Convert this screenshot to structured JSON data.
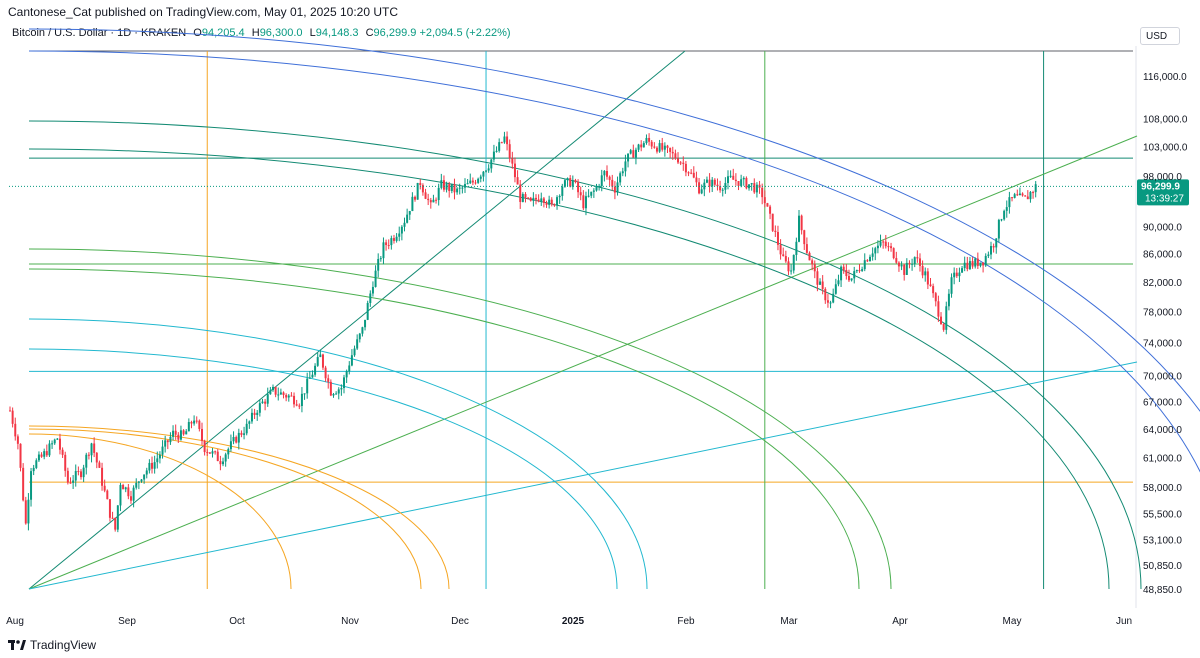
{
  "header": {
    "published": "Cantonese_Cat published on TradingView.com, May 01, 2025 10:20 UTC",
    "symbol": "Bitcoin / U.S. Dollar · 1D · KRAKEN",
    "open_label": "O",
    "open": "94,205.4",
    "high_label": "H",
    "high": "96,300.0",
    "low_label": "L",
    "low": "94,148.3",
    "close_label": "C",
    "close": "96,299.9",
    "change": "+2,094.5 (+2.22%)",
    "currency": "USD"
  },
  "footer": {
    "brand": "TradingView"
  },
  "colors": {
    "up": "#089981",
    "down": "#f23645",
    "orange": "#f5a623",
    "cyan": "#22b8cf",
    "green": "#4caf50",
    "teal": "#138a73",
    "blue": "#3f6fd8",
    "price_tag": "#089981"
  },
  "chart_data": {
    "type": "candlestick",
    "title": "Bitcoin / U.S. Dollar · 1D · KRAKEN",
    "y_scale": "log",
    "ylim": [
      48850,
      121000
    ],
    "y_ticks": [
      "116,000.0",
      "108,000.0",
      "103,000.0",
      "98,000.0",
      "90,000.0",
      "86,000.0",
      "82,000.0",
      "78,000.0",
      "74,000.0",
      "70,000.0",
      "67,000.0",
      "64,000.0",
      "61,000.0",
      "58,000.0",
      "55,500.0",
      "53,100.0",
      "50,850.0",
      "48,850.0"
    ],
    "x_ticks": [
      "Aug",
      "Sep",
      "Oct",
      "Nov",
      "Dec",
      "2025",
      "Feb",
      "Mar",
      "Apr",
      "May",
      "Jun"
    ],
    "last_price": "96,299.9",
    "countdown": "13:39:27",
    "price_anchors": [
      [
        0,
        66000
      ],
      [
        3,
        62500
      ],
      [
        5,
        57000
      ],
      [
        6,
        54500
      ],
      [
        8,
        60000
      ],
      [
        12,
        61000
      ],
      [
        18,
        63000
      ],
      [
        22,
        58500
      ],
      [
        27,
        59500
      ],
      [
        31,
        62500
      ],
      [
        36,
        57500
      ],
      [
        38,
        55500
      ],
      [
        40,
        54000
      ],
      [
        42,
        58500
      ],
      [
        46,
        57200
      ],
      [
        50,
        59200
      ],
      [
        55,
        60500
      ],
      [
        62,
        63500
      ],
      [
        66,
        63200
      ],
      [
        70,
        65200
      ],
      [
        74,
        62000
      ],
      [
        80,
        60700
      ],
      [
        86,
        63000
      ],
      [
        90,
        64200
      ],
      [
        94,
        66200
      ],
      [
        100,
        68200
      ],
      [
        106,
        67600
      ],
      [
        110,
        67000
      ],
      [
        114,
        69700
      ],
      [
        118,
        72300
      ],
      [
        122,
        68200
      ],
      [
        126,
        68600
      ],
      [
        130,
        72500
      ],
      [
        134,
        75600
      ],
      [
        138,
        82000
      ],
      [
        142,
        87000
      ],
      [
        146,
        88500
      ],
      [
        150,
        91000
      ],
      [
        156,
        97000
      ],
      [
        160,
        93000
      ],
      [
        164,
        96500
      ],
      [
        170,
        95500
      ],
      [
        176,
        97000
      ],
      [
        182,
        100000
      ],
      [
        188,
        104500
      ],
      [
        192,
        98000
      ],
      [
        194,
        94500
      ],
      [
        198,
        93500
      ],
      [
        202,
        95000
      ],
      [
        206,
        93000
      ],
      [
        210,
        96500
      ],
      [
        214,
        97200
      ],
      [
        218,
        93500
      ],
      [
        222,
        95500
      ],
      [
        226,
        98500
      ],
      [
        230,
        96000
      ],
      [
        234,
        100500
      ],
      [
        238,
        102500
      ],
      [
        242,
        104000
      ],
      [
        246,
        103000
      ],
      [
        250,
        102000
      ],
      [
        254,
        101000
      ],
      [
        258,
        99000
      ],
      [
        262,
        96000
      ],
      [
        266,
        97000
      ],
      [
        270,
        96300
      ],
      [
        274,
        97500
      ],
      [
        278,
        97000
      ],
      [
        282,
        96500
      ],
      [
        286,
        95000
      ],
      [
        290,
        90000
      ],
      [
        294,
        85000
      ],
      [
        297,
        83500
      ],
      [
        300,
        91000
      ],
      [
        303,
        86500
      ],
      [
        306,
        83000
      ],
      [
        309,
        80500
      ],
      [
        312,
        79000
      ],
      [
        316,
        83500
      ],
      [
        320,
        82500
      ],
      [
        324,
        84500
      ],
      [
        328,
        86500
      ],
      [
        332,
        87500
      ],
      [
        336,
        86000
      ],
      [
        340,
        83500
      ],
      [
        344,
        85500
      ],
      [
        348,
        83000
      ],
      [
        352,
        79000
      ],
      [
        355,
        76000
      ],
      [
        358,
        82000
      ],
      [
        362,
        84500
      ],
      [
        366,
        84500
      ],
      [
        370,
        85000
      ],
      [
        374,
        87500
      ],
      [
        378,
        93000
      ],
      [
        382,
        94500
      ],
      [
        386,
        94200
      ],
      [
        390,
        96300
      ]
    ],
    "lines": {
      "h_levels": [
        101000,
        84500,
        70500,
        58500
      ],
      "v_dates_index": [
        75,
        181,
        287,
        393
      ]
    }
  }
}
